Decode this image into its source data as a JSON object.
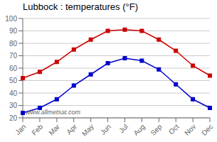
{
  "chart_data": {
    "type": "line",
    "title": "Lubbock : temperatures (°F)",
    "categories": [
      "Jan",
      "Feb",
      "Mar",
      "Apr",
      "May",
      "Jun",
      "Jul",
      "Aug",
      "Sep",
      "Oct",
      "Nov",
      "Dec"
    ],
    "series": [
      {
        "color": "#cc0000",
        "marker": "square",
        "values": [
          52,
          57,
          65,
          75,
          83,
          90,
          91,
          90,
          83,
          74,
          62,
          54
        ]
      },
      {
        "color": "#0000cc",
        "marker": "square",
        "values": [
          24,
          28,
          35,
          46,
          55,
          64,
          68,
          66,
          59,
          47,
          35,
          28
        ]
      }
    ],
    "ylim": [
      20,
      100
    ],
    "yticks": [
      20,
      30,
      40,
      50,
      60,
      70,
      80,
      90,
      100
    ],
    "grid": true,
    "annotations": [
      "www.allmetsat.com"
    ]
  }
}
